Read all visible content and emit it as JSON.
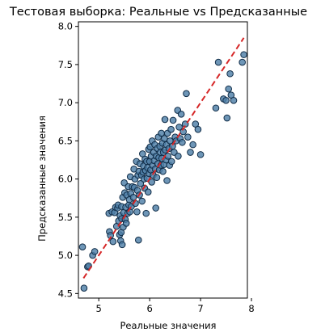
{
  "chart_data": {
    "type": "scatter",
    "title": "Тестовая выборка: Реальные vs Предсказанные",
    "xlabel": "Реальные значения",
    "ylabel": "Предсказанные значения",
    "xlim": [
      4.6,
      7.92
    ],
    "ylim": [
      4.44,
      8.06
    ],
    "xticks": [
      5,
      6,
      7,
      8
    ],
    "yticks": [
      4.5,
      5.0,
      5.5,
      6.0,
      6.5,
      7.0,
      7.5,
      8.0
    ],
    "ytick_labels": [
      "4.5",
      "5.0",
      "5.5",
      "6.0",
      "6.5",
      "7.0",
      "7.5",
      "8.0"
    ],
    "grid": false,
    "point_color": "#4e7fa7",
    "point_edge_color": "#102c47",
    "reference_line": {
      "x": [
        4.7,
        7.85
      ],
      "y": [
        4.7,
        7.85
      ],
      "color": "#d62728",
      "style": "dashed"
    },
    "points": [
      [
        4.68,
        5.11
      ],
      [
        4.71,
        4.57
      ],
      [
        4.78,
        4.85
      ],
      [
        4.8,
        4.86
      ],
      [
        4.88,
        5.0
      ],
      [
        4.92,
        5.05
      ],
      [
        5.2,
        5.55
      ],
      [
        5.21,
        5.31
      ],
      [
        5.23,
        5.26
      ],
      [
        5.26,
        5.57
      ],
      [
        5.28,
        5.18
      ],
      [
        5.31,
        5.56
      ],
      [
        5.33,
        5.63
      ],
      [
        5.35,
        5.38
      ],
      [
        5.37,
        5.62
      ],
      [
        5.38,
        5.66
      ],
      [
        5.39,
        5.45
      ],
      [
        5.41,
        5.27
      ],
      [
        5.42,
        5.52
      ],
      [
        5.43,
        5.19
      ],
      [
        5.44,
        5.3
      ],
      [
        5.45,
        5.48
      ],
      [
        5.45,
        5.64
      ],
      [
        5.46,
        5.14
      ],
      [
        5.47,
        5.76
      ],
      [
        5.48,
        5.37
      ],
      [
        5.49,
        5.56
      ],
      [
        5.5,
        5.95
      ],
      [
        5.51,
        5.82
      ],
      [
        5.52,
        5.47
      ],
      [
        5.53,
        5.63
      ],
      [
        5.54,
        5.42
      ],
      [
        5.55,
        5.79
      ],
      [
        5.57,
        5.55
      ],
      [
        5.58,
        5.9
      ],
      [
        5.59,
        5.66
      ],
      [
        5.6,
        5.73
      ],
      [
        5.61,
        5.57
      ],
      [
        5.62,
        6.03
      ],
      [
        5.63,
        5.81
      ],
      [
        5.64,
        5.64
      ],
      [
        5.66,
        5.9
      ],
      [
        5.68,
        5.76
      ],
      [
        5.69,
        6.13
      ],
      [
        5.7,
        5.89
      ],
      [
        5.71,
        6.0
      ],
      [
        5.72,
        5.68
      ],
      [
        5.74,
        6.23
      ],
      [
        5.75,
        5.57
      ],
      [
        5.76,
        5.85
      ],
      [
        5.77,
        6.05
      ],
      [
        5.78,
        5.2
      ],
      [
        5.79,
        6.1
      ],
      [
        5.8,
        5.79
      ],
      [
        5.81,
        6.2
      ],
      [
        5.82,
        5.94
      ],
      [
        5.84,
        6.05
      ],
      [
        5.85,
        5.71
      ],
      [
        5.86,
        6.33
      ],
      [
        5.87,
        6.09
      ],
      [
        5.88,
        6.17
      ],
      [
        5.89,
        6.0
      ],
      [
        5.9,
        5.88
      ],
      [
        5.91,
        6.26
      ],
      [
        5.92,
        6.11
      ],
      [
        5.93,
        5.55
      ],
      [
        5.94,
        6.23
      ],
      [
        5.95,
        6.01
      ],
      [
        5.96,
        6.15
      ],
      [
        5.97,
        5.83
      ],
      [
        5.98,
        6.39
      ],
      [
        5.99,
        6.07
      ],
      [
        6.0,
        6.23
      ],
      [
        6.01,
        6.42
      ],
      [
        6.02,
        6.12
      ],
      [
        6.03,
        6.3
      ],
      [
        6.04,
        5.96
      ],
      [
        6.05,
        6.5
      ],
      [
        6.06,
        6.18
      ],
      [
        6.07,
        6.05
      ],
      [
        6.08,
        6.35
      ],
      [
        6.09,
        6.24
      ],
      [
        6.1,
        6.45
      ],
      [
        6.11,
        6.13
      ],
      [
        6.12,
        5.62
      ],
      [
        6.13,
        6.3
      ],
      [
        6.14,
        6.02
      ],
      [
        6.15,
        6.4
      ],
      [
        6.16,
        6.2
      ],
      [
        6.17,
        6.55
      ],
      [
        6.18,
        6.28
      ],
      [
        6.19,
        6.12
      ],
      [
        6.2,
        6.43
      ],
      [
        6.21,
        6.35
      ],
      [
        6.22,
        6.18
      ],
      [
        6.23,
        6.6
      ],
      [
        6.24,
        6.27
      ],
      [
        6.25,
        6.47
      ],
      [
        6.26,
        6.1
      ],
      [
        6.27,
        6.35
      ],
      [
        6.28,
        6.19
      ],
      [
        6.29,
        6.53
      ],
      [
        6.3,
        6.78
      ],
      [
        6.31,
        6.38
      ],
      [
        6.32,
        6.25
      ],
      [
        6.33,
        6.45
      ],
      [
        6.34,
        5.98
      ],
      [
        6.35,
        6.6
      ],
      [
        6.36,
        6.3
      ],
      [
        6.38,
        6.4
      ],
      [
        6.39,
        6.18
      ],
      [
        6.4,
        6.5
      ],
      [
        6.42,
        6.65
      ],
      [
        6.43,
        6.23
      ],
      [
        6.45,
        6.43
      ],
      [
        6.46,
        6.77
      ],
      [
        6.48,
        6.35
      ],
      [
        6.5,
        6.55
      ],
      [
        6.52,
        6.5
      ],
      [
        6.55,
        6.9
      ],
      [
        6.56,
        6.3
      ],
      [
        6.58,
        6.68
      ],
      [
        6.6,
        6.53
      ],
      [
        6.62,
        6.85
      ],
      [
        6.64,
        6.48
      ],
      [
        6.66,
        6.62
      ],
      [
        6.7,
        6.72
      ],
      [
        6.72,
        7.12
      ],
      [
        6.75,
        6.55
      ],
      [
        6.8,
        6.35
      ],
      [
        6.85,
        6.45
      ],
      [
        6.9,
        6.72
      ],
      [
        6.95,
        6.65
      ],
      [
        7.0,
        6.32
      ],
      [
        7.3,
        6.93
      ],
      [
        7.35,
        7.53
      ],
      [
        7.45,
        7.05
      ],
      [
        7.5,
        7.03
      ],
      [
        7.52,
        6.8
      ],
      [
        7.55,
        7.18
      ],
      [
        7.58,
        7.38
      ],
      [
        7.6,
        7.1
      ],
      [
        7.65,
        7.03
      ],
      [
        7.82,
        7.53
      ],
      [
        7.85,
        7.63
      ]
    ]
  }
}
